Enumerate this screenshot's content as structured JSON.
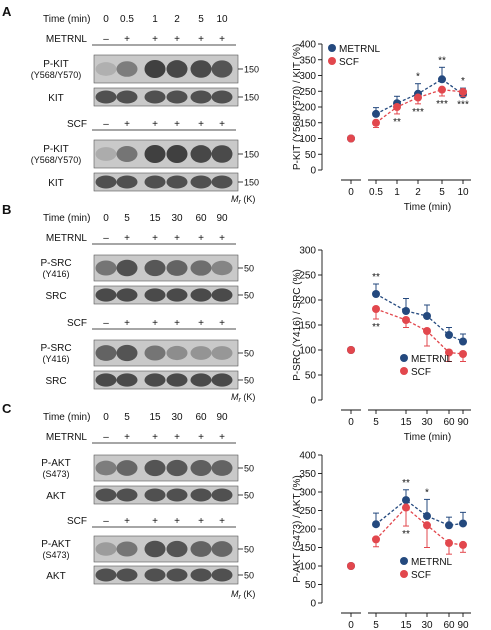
{
  "colors": {
    "metrnl": "#24497e",
    "scf": "#e2474d",
    "blot_bg": "#cfcfcf",
    "band": "#1a1a1a"
  },
  "panels": [
    {
      "letter": "A",
      "time_label": "Time (min)",
      "times": [
        "0",
        "0.5",
        "1",
        "2",
        "5",
        "10"
      ],
      "blocks": [
        {
          "treatment": "METRNL",
          "signs": [
            "–",
            "+",
            "+",
            "+",
            "+",
            "+"
          ],
          "blots": [
            {
              "label": [
                "P-KIT",
                "(Y568/Y570)"
              ],
              "marker": "150",
              "intensity": [
                0.22,
                0.55,
                0.95,
                0.9,
                0.88,
                0.82
              ]
            },
            {
              "label": [
                "KIT"
              ],
              "marker": "150",
              "intensity": [
                0.85,
                0.85,
                0.85,
                0.85,
                0.85,
                0.85
              ]
            }
          ]
        },
        {
          "treatment": "SCF",
          "signs": [
            "–",
            "+",
            "+",
            "+",
            "+",
            "+"
          ],
          "blots": [
            {
              "label": [
                "P-KIT",
                "(Y568/Y570)"
              ],
              "marker": "150",
              "intensity": [
                0.25,
                0.6,
                0.95,
                0.95,
                0.9,
                0.88
              ]
            },
            {
              "label": [
                "KIT"
              ],
              "marker": "150",
              "intensity": [
                0.85,
                0.85,
                0.85,
                0.85,
                0.85,
                0.85
              ]
            }
          ]
        }
      ],
      "mr_label": "M",
      "mr_sub": "r",
      "mr_unit": " (K)"
    },
    {
      "letter": "B",
      "time_label": "Time (min)",
      "times": [
        "0",
        "5",
        "15",
        "30",
        "60",
        "90"
      ],
      "blocks": [
        {
          "treatment": "METRNL",
          "signs": [
            "–",
            "+",
            "+",
            "+",
            "+",
            "+"
          ],
          "blots": [
            {
              "label": [
                "P-SRC",
                "(Y416)"
              ],
              "marker": "50",
              "intensity": [
                0.6,
                0.85,
                0.8,
                0.72,
                0.65,
                0.5
              ]
            },
            {
              "label": [
                "SRC"
              ],
              "marker": "50",
              "intensity": [
                0.88,
                0.88,
                0.88,
                0.88,
                0.88,
                0.88
              ]
            }
          ]
        },
        {
          "treatment": "SCF",
          "signs": [
            "–",
            "+",
            "+",
            "+",
            "+",
            "+"
          ],
          "blots": [
            {
              "label": [
                "P-SRC",
                "(Y416)"
              ],
              "marker": "50",
              "intensity": [
                0.72,
                0.82,
                0.6,
                0.45,
                0.4,
                0.38
              ]
            },
            {
              "label": [
                "SRC"
              ],
              "marker": "50",
              "intensity": [
                0.88,
                0.88,
                0.88,
                0.88,
                0.88,
                0.88
              ]
            }
          ]
        }
      ],
      "mr_label": "M",
      "mr_sub": "r",
      "mr_unit": " (K)"
    },
    {
      "letter": "C",
      "time_label": "Time (min)",
      "times": [
        "0",
        "5",
        "15",
        "30",
        "60",
        "90"
      ],
      "blocks": [
        {
          "treatment": "METRNL",
          "signs": [
            "–",
            "+",
            "+",
            "+",
            "+",
            "+"
          ],
          "blots": [
            {
              "label": [
                "P-AKT",
                "(S473)"
              ],
              "marker": "50",
              "intensity": [
                0.55,
                0.7,
                0.82,
                0.8,
                0.75,
                0.72
              ]
            },
            {
              "label": [
                "AKT"
              ],
              "marker": "50",
              "intensity": [
                0.85,
                0.85,
                0.85,
                0.85,
                0.85,
                0.85
              ]
            }
          ]
        },
        {
          "treatment": "SCF",
          "signs": [
            "–",
            "+",
            "+",
            "+",
            "+",
            "+"
          ],
          "blots": [
            {
              "label": [
                "P-AKT",
                "(S473)"
              ],
              "marker": "50",
              "intensity": [
                0.35,
                0.6,
                0.85,
                0.82,
                0.72,
                0.7
              ]
            },
            {
              "label": [
                "AKT"
              ],
              "marker": "50",
              "intensity": [
                0.85,
                0.85,
                0.85,
                0.85,
                0.85,
                0.85
              ]
            }
          ]
        }
      ],
      "mr_label": "M",
      "mr_sub": "r",
      "mr_unit": " (K)"
    }
  ],
  "chart_data": [
    {
      "type": "line",
      "panel": "A",
      "title": "",
      "ylabel": "P-KIT (Y568/Y570) / KIT (%)",
      "xlabel": "Time (min)",
      "categories": [
        "0",
        "0.5",
        "1",
        "2",
        "5",
        "10"
      ],
      "ylim": [
        0,
        400
      ],
      "yticks": [
        0,
        50,
        100,
        150,
        200,
        250,
        300,
        350,
        400
      ],
      "legend": "top-left",
      "series": [
        {
          "name": "METRNL",
          "color": "#24497e",
          "values": [
            100,
            178,
            212,
            242,
            288,
            240
          ],
          "err": [
            0,
            20,
            22,
            32,
            38,
            20
          ],
          "sig": [
            "",
            "",
            "",
            "*",
            "**",
            "*"
          ],
          "sig_pos": "above"
        },
        {
          "name": "SCF",
          "color": "#e2474d",
          "values": [
            100,
            150,
            200,
            230,
            255,
            248
          ],
          "err": [
            0,
            15,
            22,
            20,
            20,
            15
          ],
          "sig": [
            "",
            "",
            "**",
            "***",
            "***",
            "***"
          ],
          "sig_pos": "below"
        }
      ]
    },
    {
      "type": "line",
      "panel": "B",
      "title": "",
      "ylabel": "P-SRC (Y416) / SRC (%)",
      "xlabel": "Time (min)",
      "categories": [
        "0",
        "5",
        "15",
        "30",
        "60",
        "90"
      ],
      "ylim": [
        0,
        300
      ],
      "yticks": [
        0,
        50,
        100,
        150,
        200,
        250,
        300
      ],
      "legend": "bottom-right",
      "series": [
        {
          "name": "METRNL",
          "color": "#24497e",
          "values": [
            100,
            212,
            178,
            168,
            130,
            117
          ],
          "err": [
            0,
            20,
            25,
            22,
            15,
            15
          ],
          "sig": [
            "",
            "**",
            "",
            "",
            "",
            ""
          ],
          "sig_pos": "above"
        },
        {
          "name": "SCF",
          "color": "#e2474d",
          "values": [
            100,
            182,
            160,
            138,
            95,
            92
          ],
          "err": [
            0,
            20,
            15,
            30,
            18,
            15
          ],
          "sig": [
            "",
            "**",
            "",
            "",
            "",
            ""
          ],
          "sig_pos": "below"
        }
      ]
    },
    {
      "type": "line",
      "panel": "C",
      "title": "",
      "ylabel": "P-AKT (S473) / AKT (%)",
      "xlabel": "Time (min)",
      "categories": [
        "0",
        "5",
        "15",
        "30",
        "60",
        "90"
      ],
      "ylim": [
        0,
        400
      ],
      "yticks": [
        0,
        50,
        100,
        150,
        200,
        250,
        300,
        350,
        400
      ],
      "legend": "bottom-right",
      "series": [
        {
          "name": "METRNL",
          "color": "#24497e",
          "values": [
            100,
            213,
            278,
            235,
            210,
            215
          ],
          "err": [
            0,
            30,
            28,
            45,
            22,
            30
          ],
          "sig": [
            "",
            "",
            "**",
            "*",
            "",
            ""
          ],
          "sig_pos": "above"
        },
        {
          "name": "SCF",
          "color": "#e2474d",
          "values": [
            100,
            172,
            258,
            210,
            162,
            157
          ],
          "err": [
            0,
            20,
            50,
            60,
            30,
            20
          ],
          "sig": [
            "",
            "",
            "**",
            "",
            "",
            ""
          ],
          "sig_pos": "below"
        }
      ]
    }
  ]
}
